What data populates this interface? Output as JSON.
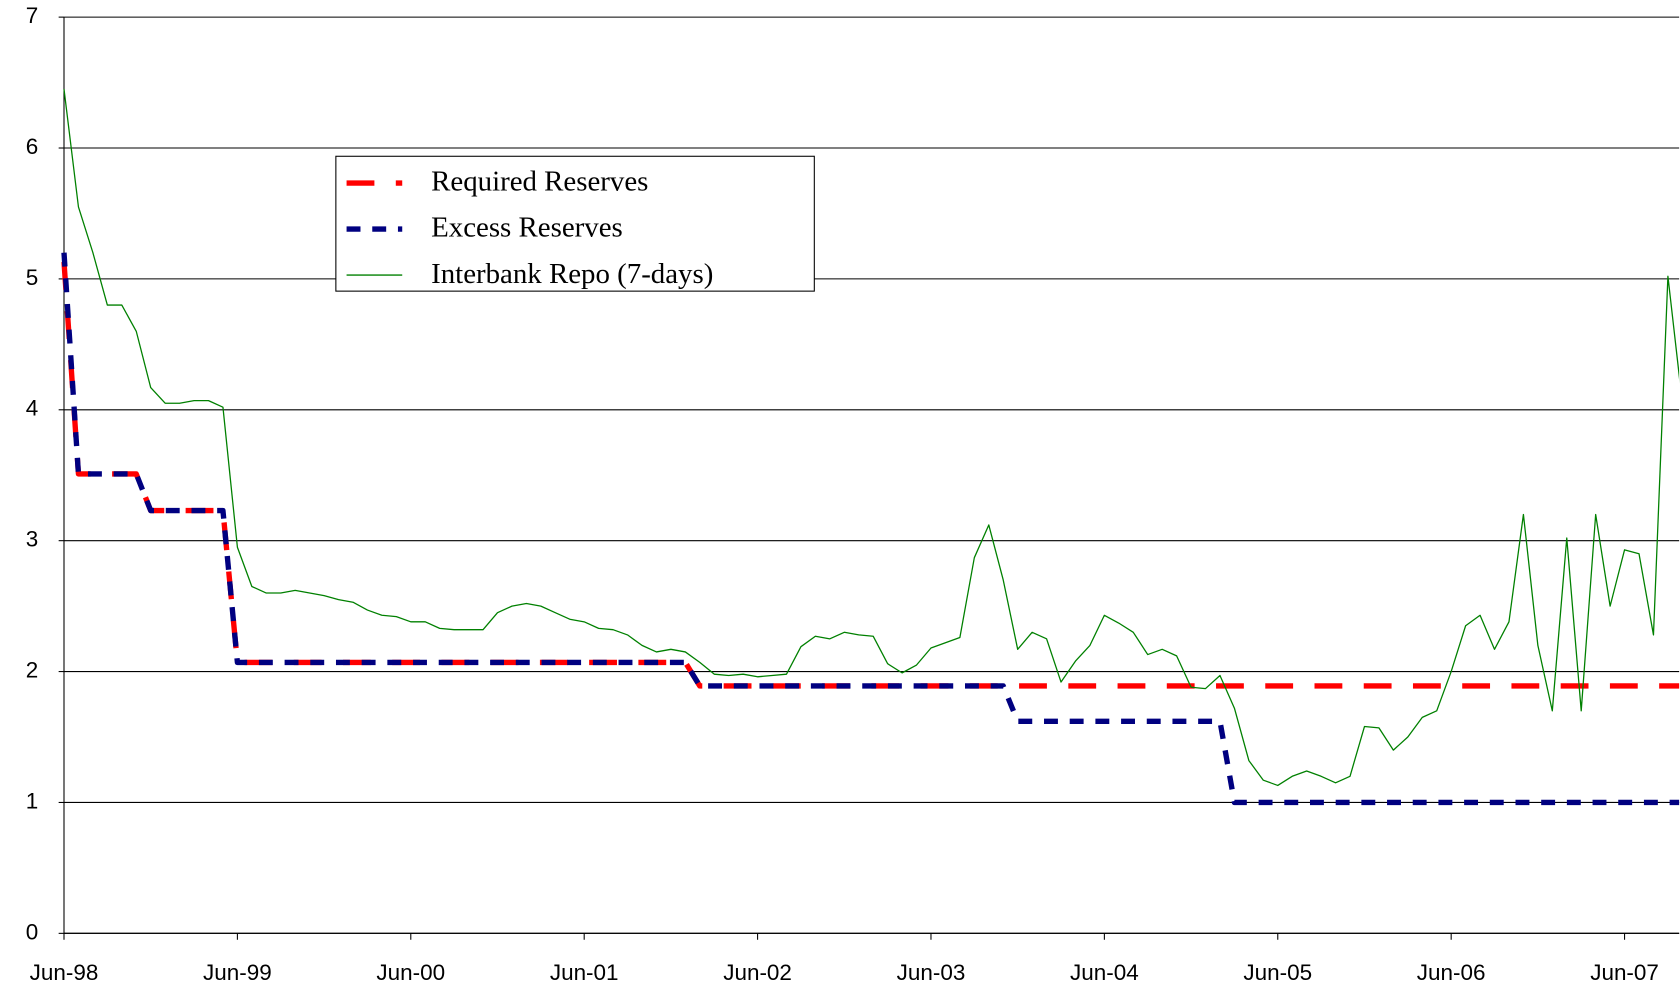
{
  "chart_data": {
    "type": "line",
    "categories": [
      "Jun-98",
      null,
      null,
      null,
      null,
      null,
      null,
      null,
      null,
      null,
      null,
      null,
      "Jun-99",
      null,
      null,
      null,
      null,
      null,
      null,
      null,
      null,
      null,
      null,
      null,
      "Jun-00",
      null,
      null,
      null,
      null,
      null,
      null,
      null,
      null,
      null,
      null,
      null,
      "Jun-01",
      null,
      null,
      null,
      null,
      null,
      null,
      null,
      null,
      null,
      null,
      null,
      "Jun-02",
      null,
      null,
      null,
      null,
      null,
      null,
      null,
      null,
      null,
      null,
      null,
      "Jun-03",
      null,
      null,
      null,
      null,
      null,
      null,
      null,
      null,
      null,
      null,
      null,
      "Jun-04",
      null,
      null,
      null,
      null,
      null,
      null,
      null,
      null,
      null,
      null,
      null,
      "Jun-05",
      null,
      null,
      null,
      null,
      null,
      null,
      null,
      null,
      null,
      null,
      null,
      "Jun-06",
      null,
      null,
      null,
      null,
      null,
      null,
      null,
      null,
      null,
      null,
      null,
      "Jun-07",
      null,
      null,
      null,
      null
    ],
    "series": [
      {
        "name": "Required Reserves",
        "color": "#ff0000",
        "dash": "long",
        "values": [
          5.13,
          3.51,
          3.51,
          3.51,
          3.51,
          3.51,
          3.23,
          3.23,
          3.23,
          3.23,
          3.23,
          3.23,
          2.07,
          2.07,
          2.07,
          2.07,
          2.07,
          2.07,
          2.07,
          2.07,
          2.07,
          2.07,
          2.07,
          2.07,
          2.07,
          2.07,
          2.07,
          2.07,
          2.07,
          2.07,
          2.07,
          2.07,
          2.07,
          2.07,
          2.07,
          2.07,
          2.07,
          2.07,
          2.07,
          2.07,
          2.07,
          2.07,
          2.07,
          2.07,
          1.89,
          1.89,
          1.89,
          1.89,
          1.89,
          1.89,
          1.89,
          1.89,
          1.89,
          1.89,
          1.89,
          1.89,
          1.89,
          1.89,
          1.89,
          1.89,
          1.89,
          1.89,
          1.89,
          1.89,
          1.89,
          1.89,
          1.89,
          1.89,
          1.89,
          1.89,
          1.89,
          1.89,
          1.89,
          1.89,
          1.89,
          1.89,
          1.89,
          1.89,
          1.89,
          1.89,
          1.89,
          1.89,
          1.89,
          1.89,
          1.89,
          1.89,
          1.89,
          1.89,
          1.89,
          1.89,
          1.89,
          1.89,
          1.89,
          1.89,
          1.89,
          1.89,
          1.89,
          1.89,
          1.89,
          1.89,
          1.89,
          1.89,
          1.89,
          1.89,
          1.89,
          1.89,
          1.89,
          1.89,
          1.89,
          1.89,
          1.89,
          1.89,
          1.89
        ]
      },
      {
        "name": "Excess Reserves",
        "color": "#000080",
        "dash": "short",
        "values": [
          5.2,
          3.51,
          3.51,
          3.51,
          3.51,
          3.51,
          3.23,
          3.23,
          3.23,
          3.23,
          3.23,
          3.23,
          2.07,
          2.07,
          2.07,
          2.07,
          2.07,
          2.07,
          2.07,
          2.07,
          2.07,
          2.07,
          2.07,
          2.07,
          2.07,
          2.07,
          2.07,
          2.07,
          2.07,
          2.07,
          2.07,
          2.07,
          2.07,
          2.07,
          2.07,
          2.07,
          2.07,
          2.07,
          2.07,
          2.07,
          2.07,
          2.07,
          2.07,
          2.07,
          1.89,
          1.89,
          1.89,
          1.89,
          1.89,
          1.89,
          1.89,
          1.89,
          1.89,
          1.89,
          1.89,
          1.89,
          1.89,
          1.89,
          1.89,
          1.89,
          1.89,
          1.89,
          1.89,
          1.89,
          1.89,
          1.89,
          1.62,
          1.62,
          1.62,
          1.62,
          1.62,
          1.62,
          1.62,
          1.62,
          1.62,
          1.62,
          1.62,
          1.62,
          1.62,
          1.62,
          1.62,
          1.0,
          1.0,
          1.0,
          1.0,
          1.0,
          1.0,
          1.0,
          1.0,
          1.0,
          1.0,
          1.0,
          1.0,
          1.0,
          1.0,
          1.0,
          1.0,
          1.0,
          1.0,
          1.0,
          1.0,
          1.0,
          1.0,
          1.0,
          1.0,
          1.0,
          1.0,
          1.0,
          1.0,
          1.0,
          1.0,
          1.0,
          1.0
        ]
      },
      {
        "name": "Interbank Repo (7-days)",
        "color": "#008000",
        "dash": "solid",
        "values": [
          6.45,
          5.55,
          5.2,
          4.8,
          4.8,
          4.6,
          4.17,
          4.05,
          4.05,
          4.07,
          4.07,
          4.02,
          2.95,
          2.65,
          2.6,
          2.6,
          2.62,
          2.6,
          2.58,
          2.55,
          2.53,
          2.47,
          2.43,
          2.42,
          2.38,
          2.38,
          2.33,
          2.32,
          2.32,
          2.32,
          2.45,
          2.5,
          2.52,
          2.5,
          2.45,
          2.4,
          2.38,
          2.33,
          2.32,
          2.28,
          2.2,
          2.15,
          2.17,
          2.15,
          2.07,
          1.98,
          1.97,
          1.98,
          1.96,
          1.97,
          1.98,
          2.19,
          2.27,
          2.25,
          2.3,
          2.28,
          2.27,
          2.06,
          1.99,
          2.05,
          2.18,
          2.22,
          2.26,
          2.87,
          3.12,
          2.7,
          2.17,
          2.3,
          2.25,
          1.92,
          2.08,
          2.2,
          2.43,
          2.37,
          2.3,
          2.13,
          2.17,
          2.12,
          1.88,
          1.87,
          1.97,
          1.72,
          1.32,
          1.17,
          1.13,
          1.2,
          1.24,
          1.2,
          1.15,
          1.2,
          1.58,
          1.57,
          1.4,
          1.5,
          1.65,
          1.7,
          2.0,
          2.35,
          2.43,
          2.17,
          2.38,
          3.2,
          2.2,
          1.7,
          3.02,
          1.7,
          3.2,
          2.5,
          2.93,
          2.9,
          2.28,
          5.02,
          4.05
        ]
      }
    ],
    "ylim": [
      0,
      7
    ],
    "yticks": [
      0,
      1,
      2,
      3,
      4,
      5,
      6,
      7
    ],
    "grid": true,
    "legend": "upper left"
  }
}
